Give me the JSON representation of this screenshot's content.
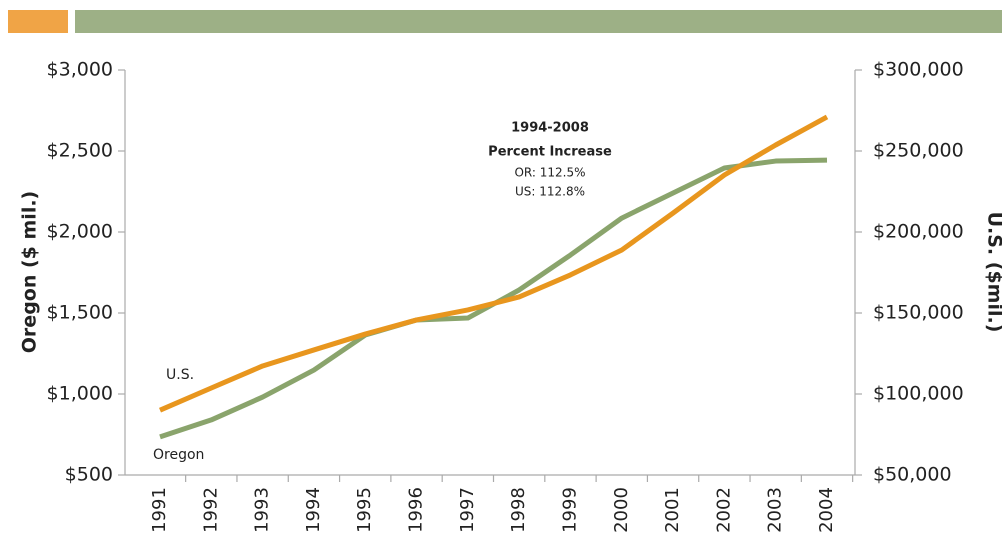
{
  "chart_data": {
    "type": "line",
    "categories": [
      "1991",
      "1992",
      "1993",
      "1994",
      "1995",
      "1996",
      "1997",
      "1998",
      "1999",
      "2000",
      "2001",
      "2002",
      "2003",
      "2004"
    ],
    "y_label": "Oregon ($ mil.)",
    "y2_label": "U.S. ($mil.)",
    "ylim": [
      500,
      3000
    ],
    "yticks": [
      {
        "value": 500,
        "label": "$500"
      },
      {
        "value": 1000,
        "label": "$1,000"
      },
      {
        "value": 1500,
        "label": "$1,500"
      },
      {
        "value": 2000,
        "label": "$2,000"
      },
      {
        "value": 2500,
        "label": "$2,500"
      },
      {
        "value": 3000,
        "label": "$3,000"
      }
    ],
    "y2lim": [
      50000,
      300000
    ],
    "y2ticks": [
      {
        "value": 50000,
        "label": "$50,000"
      },
      {
        "value": 100000,
        "label": "$100,000"
      },
      {
        "value": 150000,
        "label": "$150,000"
      },
      {
        "value": 200000,
        "label": "$200,000"
      },
      {
        "value": 250000,
        "label": "$250,000"
      },
      {
        "value": 300000,
        "label": "$300,000"
      }
    ],
    "series": [
      {
        "name": "Oregon",
        "color": "#8aa46c",
        "values": [
          735,
          840,
          981,
          1148,
          1364,
          1457,
          1469,
          1642,
          1858,
          2086,
          2241,
          2395,
          2438,
          2444
        ]
      },
      {
        "name": "U.S.",
        "color": "#e8961e",
        "axis": "y2",
        "values": [
          90000,
          103700,
          117300,
          127200,
          137000,
          145700,
          151900,
          159900,
          173500,
          188900,
          211700,
          235200,
          253700,
          271000
        ]
      }
    ],
    "annotations": [
      "1994-2008",
      "Percent Increase",
      "OR: 112.5%",
      "US: 112.8%"
    ]
  }
}
